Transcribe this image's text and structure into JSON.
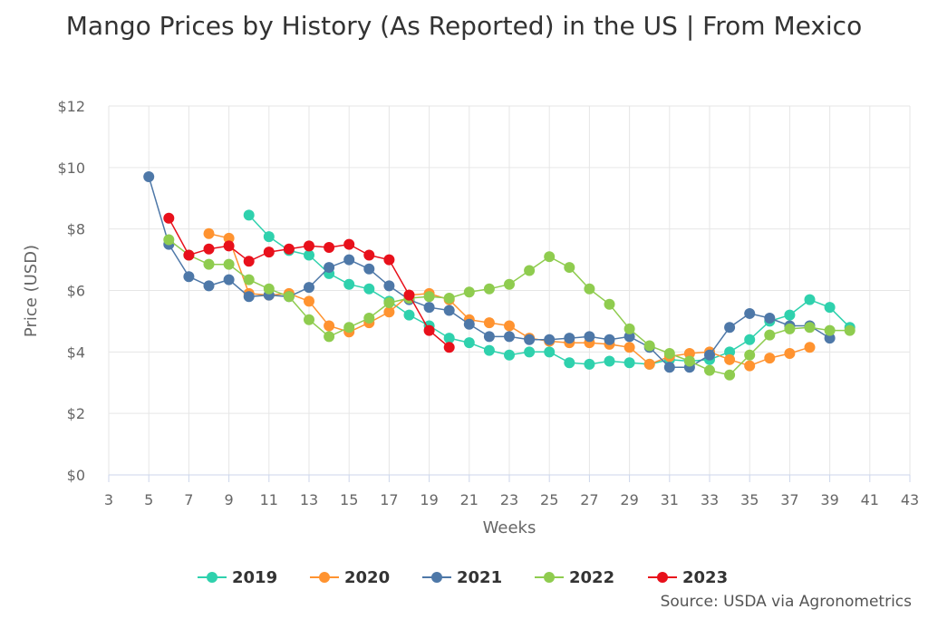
{
  "chart_data": {
    "type": "line",
    "title": "Mango Prices by History (As Reported) in the US | From Mexico",
    "xlabel": "Weeks",
    "ylabel": "Price (USD)",
    "xlim": [
      3,
      43
    ],
    "ylim": [
      0,
      12
    ],
    "xticks": [
      "3",
      "5",
      "7",
      "9",
      "11",
      "13",
      "15",
      "17",
      "19",
      "21",
      "23",
      "25",
      "27",
      "29",
      "31",
      "33",
      "35",
      "37",
      "39",
      "41",
      "43"
    ],
    "yticks": [
      "$0",
      "$2",
      "$4",
      "$6",
      "$8",
      "$10",
      "$12"
    ],
    "grid": true,
    "legend_position": "bottom",
    "series": [
      {
        "name": "2019",
        "color": "#2fd1ad",
        "x": [
          10,
          11,
          12,
          13,
          14,
          15,
          16,
          17,
          18,
          19,
          20,
          21,
          22,
          23,
          24,
          25,
          26,
          27,
          28,
          29,
          30,
          31,
          32,
          33,
          34,
          35,
          36,
          37,
          38,
          39,
          40
        ],
        "values": [
          8.45,
          7.75,
          7.3,
          7.15,
          6.55,
          6.2,
          6.05,
          5.65,
          5.2,
          4.85,
          4.45,
          4.3,
          4.05,
          3.9,
          4.0,
          4.0,
          3.65,
          3.6,
          3.7,
          3.65,
          3.6,
          3.75,
          3.7,
          3.75,
          4.0,
          4.4,
          5.0,
          5.2,
          5.7,
          5.45,
          4.8
        ]
      },
      {
        "name": "2020",
        "color": "#ff9330",
        "x": [
          8,
          9,
          10,
          11,
          12,
          13,
          14,
          15,
          16,
          17,
          18,
          19,
          20,
          21,
          22,
          23,
          24,
          25,
          26,
          27,
          28,
          29,
          30,
          31,
          32,
          33,
          34,
          35,
          36,
          37,
          38
        ],
        "values": [
          7.85,
          7.7,
          5.9,
          5.85,
          5.9,
          5.65,
          4.85,
          4.65,
          4.95,
          5.3,
          5.85,
          5.9,
          5.7,
          5.05,
          4.95,
          4.85,
          4.45,
          4.35,
          4.3,
          4.3,
          4.25,
          4.15,
          3.6,
          3.85,
          3.95,
          4.0,
          3.75,
          3.55,
          3.8,
          3.95,
          4.15
        ]
      },
      {
        "name": "2021",
        "color": "#4e78a8",
        "x": [
          5,
          6,
          7,
          8,
          9,
          10,
          11,
          12,
          13,
          14,
          15,
          16,
          17,
          18,
          19,
          20,
          21,
          22,
          23,
          24,
          25,
          26,
          27,
          28,
          29,
          30,
          31,
          32,
          33,
          34,
          35,
          36,
          37,
          38,
          39
        ],
        "values": [
          9.7,
          7.5,
          6.45,
          6.15,
          6.35,
          5.8,
          5.85,
          5.8,
          6.1,
          6.75,
          7.0,
          6.7,
          6.15,
          5.7,
          5.45,
          5.35,
          4.9,
          4.5,
          4.5,
          4.4,
          4.4,
          4.45,
          4.5,
          4.4,
          4.5,
          4.15,
          3.5,
          3.5,
          3.9,
          4.8,
          5.25,
          5.1,
          4.85,
          4.85,
          4.45
        ]
      },
      {
        "name": "2022",
        "color": "#8fcc4f",
        "x": [
          6,
          7,
          8,
          9,
          10,
          11,
          12,
          13,
          14,
          15,
          16,
          17,
          18,
          19,
          20,
          21,
          22,
          23,
          24,
          25,
          26,
          27,
          28,
          29,
          30,
          31,
          32,
          33,
          34,
          35,
          36,
          37,
          38,
          39,
          40
        ],
        "values": [
          7.65,
          7.15,
          6.85,
          6.85,
          6.35,
          6.05,
          5.8,
          5.05,
          4.5,
          4.8,
          5.1,
          5.6,
          5.75,
          5.8,
          5.75,
          5.95,
          6.05,
          6.2,
          6.65,
          7.1,
          6.75,
          6.05,
          5.55,
          4.75,
          4.2,
          3.95,
          3.7,
          3.4,
          3.25,
          3.9,
          4.55,
          4.75,
          4.8,
          4.7,
          4.7
        ]
      },
      {
        "name": "2023",
        "color": "#e8101b",
        "x": [
          6,
          7,
          8,
          9,
          10,
          11,
          12,
          13,
          14,
          15,
          16,
          17,
          18,
          19,
          20
        ],
        "values": [
          8.35,
          7.15,
          7.35,
          7.45,
          6.95,
          7.25,
          7.35,
          7.45,
          7.4,
          7.5,
          7.15,
          7.0,
          5.85,
          4.7,
          4.15
        ]
      }
    ]
  },
  "source_text": "Source: USDA via Agronometrics"
}
